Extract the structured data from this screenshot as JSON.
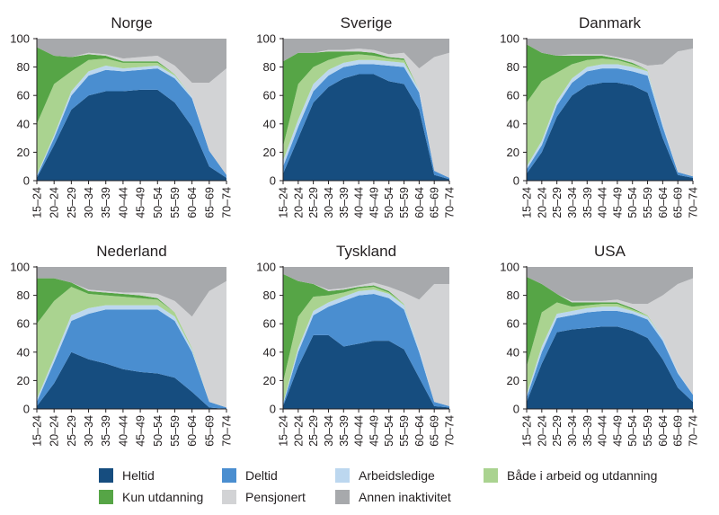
{
  "chart_data": {
    "type": "area",
    "stacked": true,
    "categories": [
      "15–24",
      "20–24",
      "25–29",
      "30–34",
      "35–39",
      "40–44",
      "45–49",
      "50–54",
      "55–59",
      "60–64",
      "65–69",
      "70–74"
    ],
    "ylim": [
      0,
      100
    ],
    "yticks": [
      "0",
      "20",
      "40",
      "60",
      "80",
      "100"
    ],
    "series_names": [
      "Heltid",
      "Deltid",
      "Arbeidsledige",
      "Både i arbeid og utdanning",
      "Kun utdanning",
      "Pensjonert",
      "Annen inaktivitet"
    ],
    "colors": {
      "Heltid": "#164d7f",
      "Deltid": "#4a8ed0",
      "Arbeidsledige": "#bcd7ef",
      "Både i arbeid og utdanning": "#aad390",
      "Kun utdanning": "#56a546",
      "Pensjonert": "#d2d3d5",
      "Annen inaktivitet": "#a7a9ac"
    },
    "panels": [
      {
        "title": "Norge",
        "values": {
          "Heltid": [
            2,
            25,
            50,
            60,
            63,
            63,
            64,
            64,
            55,
            38,
            10,
            2
          ],
          "Deltid": [
            1,
            5,
            10,
            14,
            15,
            14,
            14,
            15,
            17,
            20,
            11,
            2
          ],
          "Arbeidsledige": [
            1,
            2,
            3,
            3,
            3,
            2,
            2,
            2,
            2,
            1,
            0,
            0
          ],
          "Både i arbeid og utdanning": [
            36,
            36,
            14,
            8,
            5,
            4,
            3,
            2,
            1,
            0,
            0,
            0
          ],
          "Kun utdanning": [
            54,
            20,
            10,
            4,
            2,
            1,
            1,
            1,
            0,
            0,
            0,
            0
          ],
          "Pensjonert": [
            0,
            0,
            0,
            1,
            1,
            2,
            3,
            4,
            6,
            10,
            48,
            75
          ],
          "Annen inaktivitet": [
            6,
            12,
            13,
            10,
            11,
            14,
            13,
            12,
            19,
            31,
            31,
            21
          ]
        }
      },
      {
        "title": "Sverige",
        "values": {
          "Heltid": [
            5,
            30,
            55,
            66,
            72,
            75,
            75,
            70,
            68,
            50,
            4,
            1
          ],
          "Deltid": [
            5,
            8,
            8,
            8,
            8,
            7,
            7,
            11,
            12,
            12,
            3,
            1
          ],
          "Arbeidsledige": [
            4,
            5,
            5,
            4,
            3,
            3,
            3,
            3,
            3,
            2,
            0,
            0
          ],
          "Både i arbeid og utdanning": [
            10,
            25,
            12,
            7,
            5,
            4,
            3,
            2,
            2,
            0,
            0,
            0
          ],
          "Kun utdanning": [
            60,
            22,
            10,
            6,
            3,
            2,
            2,
            1,
            1,
            0,
            0,
            0
          ],
          "Pensjonert": [
            0,
            0,
            0,
            1,
            1,
            2,
            2,
            2,
            4,
            15,
            80,
            88
          ],
          "Annen inaktivitet": [
            16,
            10,
            10,
            8,
            8,
            7,
            8,
            11,
            10,
            21,
            13,
            10
          ]
        }
      },
      {
        "title": "Danmark",
        "values": {
          "Heltid": [
            5,
            20,
            45,
            60,
            67,
            69,
            69,
            67,
            62,
            30,
            4,
            2
          ],
          "Deltid": [
            3,
            5,
            8,
            9,
            10,
            10,
            10,
            10,
            12,
            8,
            2,
            1
          ],
          "Arbeidsledige": [
            2,
            3,
            3,
            3,
            3,
            3,
            3,
            3,
            3,
            2,
            0,
            0
          ],
          "Både i arbeid og utdanning": [
            45,
            42,
            20,
            10,
            5,
            4,
            3,
            2,
            1,
            0,
            0,
            0
          ],
          "Kun utdanning": [
            41,
            20,
            12,
            6,
            3,
            2,
            1,
            1,
            0,
            0,
            0,
            0
          ],
          "Pensjonert": [
            0,
            0,
            0,
            1,
            1,
            1,
            1,
            2,
            3,
            42,
            85,
            90
          ],
          "Annen inaktivitet": [
            4,
            10,
            12,
            11,
            11,
            11,
            13,
            15,
            19,
            18,
            9,
            7
          ]
        }
      },
      {
        "title": "Nederland",
        "values": {
          "Heltid": [
            2,
            18,
            40,
            35,
            32,
            28,
            26,
            25,
            22,
            12,
            1,
            0
          ],
          "Deltid": [
            3,
            15,
            22,
            32,
            38,
            42,
            44,
            45,
            40,
            28,
            4,
            1
          ],
          "Arbeidsledige": [
            2,
            3,
            4,
            4,
            3,
            3,
            3,
            3,
            3,
            2,
            0,
            0
          ],
          "Både i arbeid og utdanning": [
            53,
            40,
            20,
            10,
            7,
            6,
            5,
            4,
            3,
            1,
            0,
            0
          ],
          "Kun utdanning": [
            32,
            16,
            3,
            2,
            2,
            2,
            2,
            1,
            0,
            0,
            0,
            0
          ],
          "Pensjonert": [
            0,
            0,
            0,
            1,
            1,
            1,
            2,
            3,
            8,
            22,
            78,
            89
          ],
          "Annen inaktivitet": [
            8,
            8,
            11,
            16,
            17,
            18,
            18,
            19,
            24,
            35,
            17,
            10
          ]
        }
      },
      {
        "title": "Tyskland",
        "values": {
          "Heltid": [
            2,
            30,
            52,
            52,
            44,
            46,
            48,
            48,
            42,
            22,
            2,
            1
          ],
          "Deltid": [
            1,
            10,
            14,
            20,
            32,
            34,
            33,
            30,
            28,
            18,
            3,
            1
          ],
          "Arbeidsledige": [
            1,
            3,
            3,
            3,
            3,
            3,
            3,
            3,
            3,
            2,
            0,
            0
          ],
          "Både i arbeid og utdanning": [
            15,
            22,
            10,
            5,
            3,
            2,
            2,
            1,
            1,
            0,
            0,
            0
          ],
          "Kun utdanning": [
            76,
            25,
            9,
            3,
            2,
            1,
            1,
            1,
            0,
            0,
            0,
            0
          ],
          "Pensjonert": [
            0,
            0,
            0,
            1,
            1,
            1,
            2,
            3,
            8,
            35,
            83,
            86
          ],
          "Annen inaktivitet": [
            5,
            10,
            12,
            16,
            15,
            13,
            11,
            14,
            18,
            23,
            12,
            12
          ]
        }
      },
      {
        "title": "USA",
        "values": {
          "Heltid": [
            5,
            32,
            54,
            56,
            57,
            58,
            58,
            55,
            50,
            35,
            15,
            5
          ],
          "Deltid": [
            3,
            8,
            10,
            10,
            11,
            11,
            11,
            12,
            13,
            13,
            10,
            5
          ],
          "Arbeidsledige": [
            2,
            4,
            3,
            3,
            3,
            3,
            3,
            2,
            2,
            2,
            1,
            0
          ],
          "Både i arbeid og utdanning": [
            20,
            24,
            8,
            3,
            2,
            2,
            2,
            1,
            1,
            0,
            0,
            0
          ],
          "Kun utdanning": [
            63,
            20,
            6,
            3,
            2,
            1,
            1,
            1,
            0,
            0,
            0,
            0
          ],
          "Pensjonert": [
            0,
            0,
            0,
            1,
            1,
            1,
            2,
            3,
            8,
            30,
            62,
            82
          ],
          "Annen inaktivitet": [
            7,
            12,
            19,
            24,
            24,
            24,
            23,
            26,
            26,
            20,
            12,
            8
          ]
        }
      }
    ]
  }
}
